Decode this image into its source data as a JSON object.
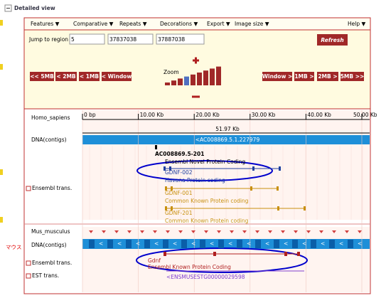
{
  "header": {
    "title": "Detailed view"
  },
  "menu": [
    "Features ▼",
    "Comparative ▼",
    "Repeats ▼",
    "Decorations ▼",
    "Export ▼",
    "Image size ▼",
    "Help ▼"
  ],
  "jump": {
    "label": "Jump to region",
    "chr": "5",
    "start": "37837038",
    "end": "37887038",
    "button": "Refresh"
  },
  "zoom": {
    "label": "Zoom"
  },
  "nav_left": [
    "<< 5MB",
    "< 2MB",
    "< 1MB",
    "< Window"
  ],
  "nav_right": [
    "Window >",
    "1MB >",
    "2MB >",
    "5MB >>"
  ],
  "tracks": [
    "Homo_sapiens",
    "DNA(contigs)",
    "Ensembl trans.",
    "Mus_musculus",
    "DNA(contigs)",
    "Ensembl trans.",
    "EST trans."
  ],
  "scale": [
    "0 bp",
    "10.00 Kb",
    "20.00 Kb",
    "30.00 Kb",
    "40.00 Kb",
    "50.00 Kb"
  ],
  "length": "51.97 Kb",
  "human_contig": "<AC008869.5.1.227979",
  "human_transcripts": [
    {
      "name": "AC008869.5-201",
      "type": "Ensembl Novel Protein Coding"
    },
    {
      "name": "GDNF-002",
      "type": "Havana Protein coding"
    },
    {
      "name": "GDNF-001",
      "type": "Common Known Protein coding"
    },
    {
      "name": "GDNF-201",
      "type": "Common Known Protein coding"
    }
  ],
  "mouse_transcripts": [
    {
      "name": "Gdnf",
      "type": "Ensembl Known Protein Coding"
    }
  ],
  "est": "<ENSMUSESTG00000029598",
  "annotation": "マウス"
}
